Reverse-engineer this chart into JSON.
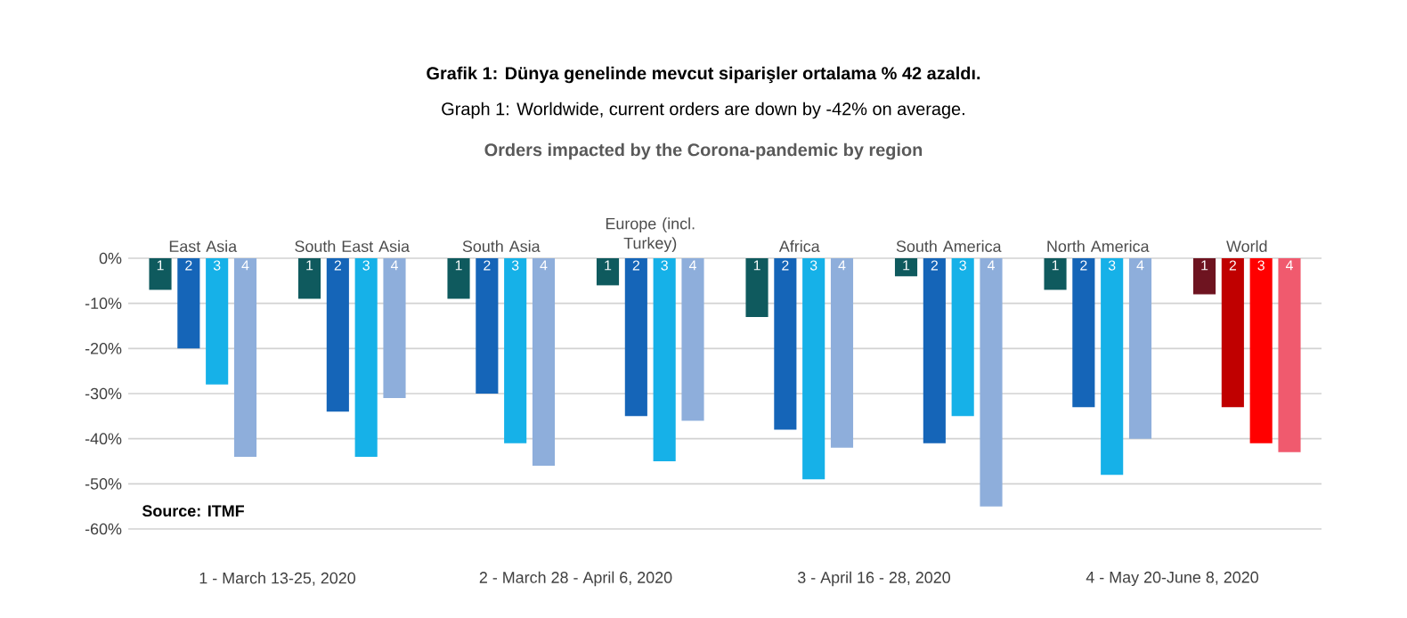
{
  "chart_data": {
    "type": "bar",
    "title": "Grafik 1: Dünya genelinde mevcut siparişler ortalama % 42 azaldı.",
    "subtitle": "Graph 1: Worldwide, current orders are down by -42% on average.",
    "annotations": [
      "Orders impacted by the Corona-pandemic by region",
      "Source: ITMF",
      "1 - March 13-25, 2020",
      "2 - March 28 - April 6, 2020",
      "3 - April 16 - 28, 2020",
      "4 - May 20-June 8, 2020"
    ],
    "categories": [
      "East Asia",
      "South East Asia",
      "South Asia",
      "Europe (incl. Turkey)",
      "Africa",
      "South America",
      "North America",
      "World"
    ],
    "series": [
      {
        "name": "1",
        "colors": [
          "#0f5a5e",
          "#0f5a5e",
          "#0f5a5e",
          "#0f5a5e",
          "#0f5a5e",
          "#0f5a5e",
          "#0f5a5e",
          "#6e1420"
        ],
        "values": [
          -7,
          -9,
          -9,
          -6,
          -13,
          -4,
          -7,
          -8
        ]
      },
      {
        "name": "2",
        "colors": [
          "#1565b8",
          "#1565b8",
          "#1565b8",
          "#1565b8",
          "#1565b8",
          "#1565b8",
          "#1565b8",
          "#c00000"
        ],
        "values": [
          -20,
          -34,
          -30,
          -35,
          -38,
          -41,
          -33,
          -33
        ]
      },
      {
        "name": "3",
        "colors": [
          "#16b1e8",
          "#16b1e8",
          "#16b1e8",
          "#16b1e8",
          "#16b1e8",
          "#16b1e8",
          "#16b1e8",
          "#ff0000"
        ],
        "values": [
          -28,
          -44,
          -41,
          -45,
          -49,
          -35,
          -48,
          -41
        ]
      },
      {
        "name": "4",
        "colors": [
          "#8eaedb",
          "#8eaedb",
          "#8eaedb",
          "#8eaedb",
          "#8eaedb",
          "#8eaedb",
          "#8eaedb",
          "#f05a6e"
        ],
        "values": [
          -44,
          -31,
          -46,
          -36,
          -42,
          -55,
          -40,
          -43
        ]
      }
    ],
    "ylim": [
      -60,
      0
    ],
    "yticks": [
      {
        "value": 0,
        "label": "0%"
      },
      {
        "value": -10,
        "label": "-10%"
      },
      {
        "value": -20,
        "label": "-20%"
      },
      {
        "value": -30,
        "label": "-30%"
      },
      {
        "value": -40,
        "label": "-40%"
      },
      {
        "value": -50,
        "label": "-50%"
      },
      {
        "value": -60,
        "label": "-60%"
      }
    ],
    "grid": "y"
  }
}
